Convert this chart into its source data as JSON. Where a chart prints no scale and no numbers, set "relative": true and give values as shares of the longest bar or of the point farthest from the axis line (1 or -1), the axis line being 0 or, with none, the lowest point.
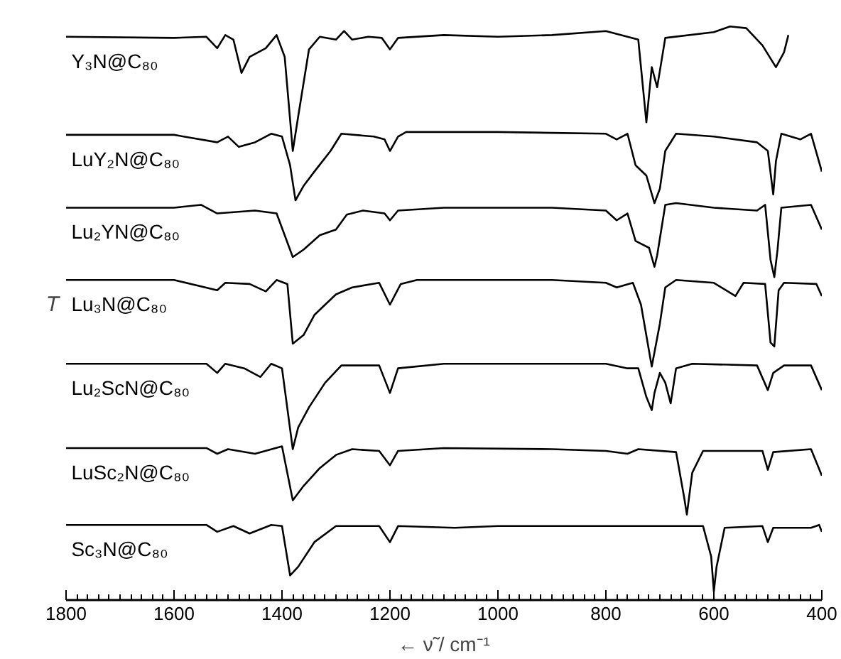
{
  "chart_data": {
    "type": "line",
    "relative": true,
    "xlabel": "← ν̃ / cm⁻¹",
    "ylabel": "T",
    "xlim": [
      1800,
      400
    ],
    "xticks": [
      1800,
      1600,
      1400,
      1200,
      1000,
      800,
      600,
      400
    ],
    "grid": false,
    "legend": false,
    "marker": "none",
    "line_style": "solid",
    "series": [
      {
        "name": "Y₃N@C₈₀",
        "color": "#000000",
        "x": [
          1800,
          1600,
          1540,
          1520,
          1505,
          1490,
          1475,
          1460,
          1430,
          1410,
          1395,
          1380,
          1370,
          1350,
          1330,
          1300,
          1285,
          1270,
          1240,
          1215,
          1200,
          1185,
          1100,
          1000,
          900,
          800,
          760,
          740,
          725,
          715,
          705,
          690,
          600,
          570,
          540,
          510,
          485,
          470,
          462
        ],
        "values": [
          0.982,
          0.98,
          0.982,
          0.962,
          0.985,
          0.977,
          0.919,
          0.947,
          0.962,
          0.985,
          0.947,
          0.783,
          0.843,
          0.96,
          0.982,
          0.977,
          0.992,
          0.977,
          0.982,
          0.98,
          0.96,
          0.98,
          0.985,
          0.982,
          0.985,
          0.992,
          0.982,
          0.977,
          0.833,
          0.929,
          0.894,
          0.98,
          0.99,
          1.0,
          0.997,
          0.967,
          0.929,
          0.955,
          0.985
        ]
      },
      {
        "name": "LuY₂N@C₈₀",
        "color": "#000000",
        "x": [
          1800,
          1600,
          1520,
          1500,
          1480,
          1450,
          1420,
          1400,
          1385,
          1375,
          1360,
          1340,
          1310,
          1290,
          1230,
          1210,
          1200,
          1185,
          1170,
          1000,
          800,
          780,
          760,
          745,
          725,
          710,
          700,
          690,
          670,
          600,
          520,
          500,
          490,
          485,
          475,
          440,
          420,
          400
        ],
        "values": [
          0.811,
          0.811,
          0.798,
          0.808,
          0.79,
          0.798,
          0.813,
          0.808,
          0.758,
          0.697,
          0.722,
          0.747,
          0.783,
          0.813,
          0.808,
          0.803,
          0.783,
          0.808,
          0.816,
          0.816,
          0.813,
          0.803,
          0.813,
          0.758,
          0.74,
          0.692,
          0.717,
          0.783,
          0.813,
          0.808,
          0.798,
          0.783,
          0.707,
          0.765,
          0.813,
          0.803,
          0.813,
          0.747
        ]
      },
      {
        "name": "Lu₂YN@C₈₀",
        "color": "#000000",
        "x": [
          1800,
          1600,
          1550,
          1520,
          1450,
          1410,
          1380,
          1360,
          1330,
          1300,
          1280,
          1250,
          1210,
          1200,
          1185,
          1100,
          900,
          800,
          780,
          760,
          745,
          720,
          710,
          705,
          690,
          670,
          600,
          520,
          505,
          495,
          488,
          482,
          475,
          420,
          400
        ],
        "values": [
          0.684,
          0.684,
          0.689,
          0.674,
          0.679,
          0.674,
          0.598,
          0.611,
          0.636,
          0.646,
          0.672,
          0.679,
          0.674,
          0.662,
          0.679,
          0.684,
          0.684,
          0.679,
          0.662,
          0.674,
          0.626,
          0.614,
          0.581,
          0.601,
          0.689,
          0.692,
          0.684,
          0.679,
          0.689,
          0.593,
          0.563,
          0.611,
          0.684,
          0.689,
          0.646
        ]
      },
      {
        "name": "Lu₃N@C₈₀",
        "color": "#000000",
        "x": [
          1800,
          1600,
          1520,
          1505,
          1460,
          1430,
          1410,
          1390,
          1380,
          1360,
          1340,
          1300,
          1270,
          1220,
          1200,
          1180,
          1150,
          900,
          800,
          780,
          750,
          735,
          715,
          700,
          690,
          670,
          600,
          560,
          545,
          505,
          495,
          488,
          480,
          470,
          410,
          400
        ],
        "values": [
          0.558,
          0.558,
          0.54,
          0.553,
          0.551,
          0.538,
          0.558,
          0.551,
          0.447,
          0.462,
          0.497,
          0.533,
          0.545,
          0.553,
          0.515,
          0.551,
          0.558,
          0.558,
          0.553,
          0.545,
          0.553,
          0.515,
          0.407,
          0.482,
          0.545,
          0.558,
          0.553,
          0.53,
          0.553,
          0.551,
          0.449,
          0.442,
          0.54,
          0.553,
          0.551,
          0.53
        ]
      },
      {
        "name": "Lu₂ScN@C₈₀",
        "color": "#000000",
        "x": [
          1800,
          1540,
          1520,
          1505,
          1470,
          1440,
          1420,
          1400,
          1380,
          1370,
          1350,
          1320,
          1290,
          1220,
          1200,
          1185,
          1100,
          800,
          760,
          740,
          725,
          715,
          710,
          700,
          690,
          680,
          670,
          640,
          520,
          500,
          490,
          470,
          420,
          400
        ],
        "values": [
          0.412,
          0.412,
          0.396,
          0.412,
          0.404,
          0.389,
          0.412,
          0.404,
          0.263,
          0.301,
          0.336,
          0.379,
          0.409,
          0.409,
          0.361,
          0.404,
          0.412,
          0.412,
          0.404,
          0.404,
          0.354,
          0.331,
          0.361,
          0.396,
          0.379,
          0.343,
          0.404,
          0.412,
          0.409,
          0.366,
          0.396,
          0.409,
          0.409,
          0.366
        ]
      },
      {
        "name": "LuSc₂N@C₈₀",
        "color": "#000000",
        "x": [
          1800,
          1540,
          1520,
          1500,
          1450,
          1400,
          1380,
          1360,
          1330,
          1300,
          1270,
          1220,
          1200,
          1185,
          1100,
          900,
          800,
          760,
          740,
          670,
          655,
          650,
          640,
          620,
          510,
          500,
          490,
          420,
          400
        ],
        "values": [
          0.265,
          0.265,
          0.255,
          0.263,
          0.255,
          0.268,
          0.174,
          0.199,
          0.23,
          0.253,
          0.263,
          0.26,
          0.235,
          0.26,
          0.265,
          0.263,
          0.26,
          0.255,
          0.263,
          0.258,
          0.179,
          0.149,
          0.222,
          0.26,
          0.26,
          0.227,
          0.258,
          0.263,
          0.217
        ]
      },
      {
        "name": "Sc₃N@C₈₀",
        "color": "#000000",
        "x": [
          1800,
          1540,
          1520,
          1490,
          1460,
          1420,
          1400,
          1385,
          1370,
          1340,
          1300,
          1220,
          1200,
          1185,
          1080,
          1000,
          800,
          620,
          605,
          600,
          595,
          580,
          510,
          500,
          490,
          420,
          405,
          400
        ],
        "values": [
          0.131,
          0.131,
          0.119,
          0.129,
          0.116,
          0.131,
          0.129,
          0.043,
          0.058,
          0.101,
          0.129,
          0.129,
          0.101,
          0.129,
          0.126,
          0.129,
          0.129,
          0.129,
          0.076,
          0.015,
          0.058,
          0.126,
          0.129,
          0.101,
          0.126,
          0.126,
          0.131,
          0.119
        ]
      }
    ]
  }
}
